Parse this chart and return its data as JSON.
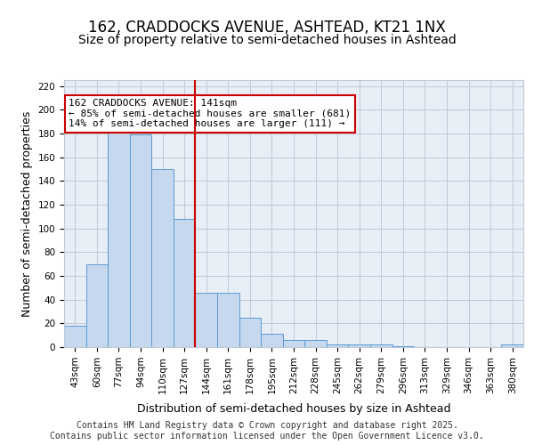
{
  "title1": "162, CRADDOCKS AVENUE, ASHTEAD, KT21 1NX",
  "title2": "Size of property relative to semi-detached houses in Ashtead",
  "xlabel": "Distribution of semi-detached houses by size in Ashtead",
  "ylabel": "Number of semi-detached properties",
  "categories": [
    "43sqm",
    "60sqm",
    "77sqm",
    "94sqm",
    "110sqm",
    "127sqm",
    "144sqm",
    "161sqm",
    "178sqm",
    "195sqm",
    "212sqm",
    "228sqm",
    "245sqm",
    "262sqm",
    "279sqm",
    "296sqm",
    "313sqm",
    "329sqm",
    "346sqm",
    "363sqm",
    "380sqm"
  ],
  "values": [
    18,
    70,
    181,
    179,
    150,
    108,
    46,
    46,
    25,
    11,
    6,
    6,
    2,
    2,
    2,
    1,
    0,
    0,
    0,
    0,
    2
  ],
  "bar_color": "#c5d8ed",
  "bar_edge_color": "#5b9bd5",
  "grid_color": "#c0c8d8",
  "background_color": "#e8eef5",
  "vline_x": 6,
  "vline_color": "#cc0000",
  "annotation_text": "162 CRADDOCKS AVENUE: 141sqm\n← 85% of semi-detached houses are smaller (681)\n14% of semi-detached houses are larger (111) →",
  "annotation_box_color": "#ffffff",
  "annotation_border_color": "#cc0000",
  "ylim": [
    0,
    225
  ],
  "yticks": [
    0,
    20,
    40,
    60,
    80,
    100,
    120,
    140,
    160,
    180,
    200,
    220
  ],
  "footer": "Contains HM Land Registry data © Crown copyright and database right 2025.\nContains public sector information licensed under the Open Government Licence v3.0.",
  "title1_fontsize": 12,
  "title2_fontsize": 10,
  "xlabel_fontsize": 9,
  "ylabel_fontsize": 9,
  "tick_fontsize": 7.5,
  "annotation_fontsize": 8,
  "footer_fontsize": 7
}
